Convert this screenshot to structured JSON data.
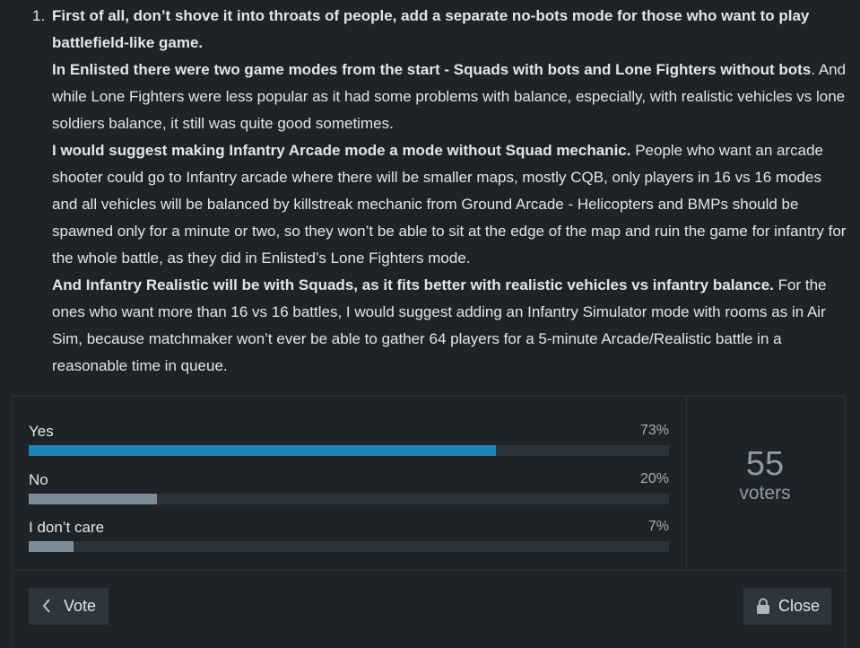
{
  "post": {
    "number": "1.",
    "paragraphs": [
      [
        {
          "text": "First of all, don’t shove it into throats of people, add a separate no-bots mode for those who want to play battlefield-like game.",
          "bold": true
        }
      ],
      [
        {
          "text": "In Enlisted there were two game modes from the start - Squads with bots and Lone Fighters without bots",
          "bold": true
        },
        {
          "text": ". And while Lone Fighters were less popular as it had some problems with balance, especially, with realistic vehicles vs lone soldiers balance, it still was quite good sometimes.",
          "bold": false
        }
      ],
      [
        {
          "text": "I would suggest making Infantry Arcade mode a mode without Squad mechanic.",
          "bold": true
        },
        {
          "text": " People who want an arcade shooter could go to Infantry arcade where there will be smaller maps, mostly CQB, only players in 16 vs 16 modes and all vehicles will be balanced by killstreak mechanic from Ground Arcade - Helicopters and BMPs should be spawned only for a minute or two, so they won’t be able to sit at the edge of the map and ruin the game for infantry for the whole battle, as they did in Enlisted’s Lone Fighters mode.",
          "bold": false
        }
      ],
      [
        {
          "text": "And Infantry Realistic will be with Squads, as it fits better with realistic vehicles vs infantry balance.",
          "bold": true
        },
        {
          "text": " For the ones who want more than 16 vs 16 battles, I would suggest adding an Infantry Simulator mode with rooms as in Air Sim, because matchmaker won’t ever be able to gather 64 players for a 5-minute Arcade/Realistic battle in a reasonable time in queue.",
          "bold": false
        }
      ]
    ]
  },
  "poll": {
    "options": [
      {
        "label": "Yes",
        "value": 73,
        "value_label": "73%",
        "color": "#1b86b9"
      },
      {
        "label": "No",
        "value": 20,
        "value_label": "20%",
        "color": "#7d8b96"
      },
      {
        "label": "I don’t care",
        "value": 7,
        "value_label": "7%",
        "color": "#7d8b96"
      }
    ],
    "voters": {
      "count": 55,
      "label": "voters"
    },
    "buttons": {
      "vote": "Vote",
      "close": "Close"
    }
  }
}
